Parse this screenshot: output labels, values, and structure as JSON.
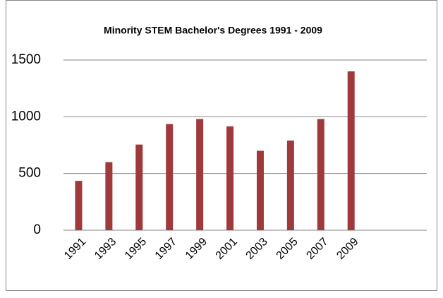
{
  "chart_data": {
    "type": "bar",
    "title": "Minority STEM Bachelor's Degrees 1991 - 2009",
    "categories": [
      "1991",
      "1993",
      "1995",
      "1997",
      "1999",
      "2001",
      "2003",
      "2005",
      "2007",
      "2009",
      null,
      null
    ],
    "values": [
      435,
      600,
      755,
      935,
      980,
      915,
      700,
      790,
      980,
      1400,
      null,
      null
    ],
    "color": "#a0393c",
    "ylim": [
      0,
      1500
    ],
    "yticks": [
      0,
      500,
      1000,
      1500
    ],
    "grid": true
  }
}
